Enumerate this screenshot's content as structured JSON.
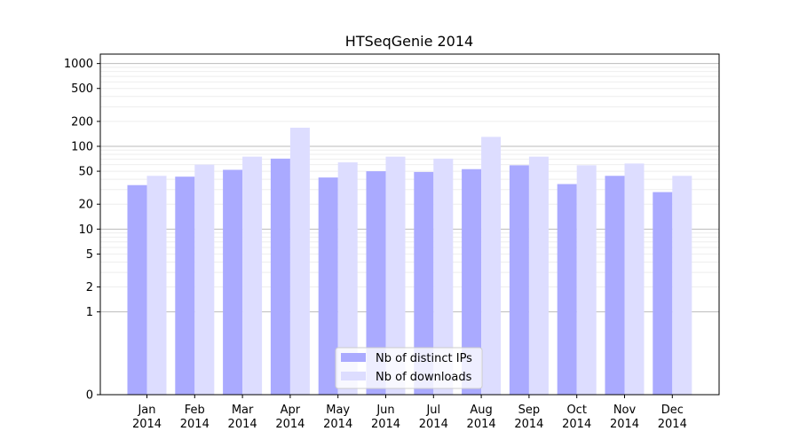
{
  "chart_data": {
    "type": "bar",
    "title": "HTSeqGenie 2014",
    "xlabel": "",
    "ylabel": "",
    "y_scale": "symlog",
    "ylim": [
      0,
      1300
    ],
    "y_ticks": [
      0,
      1,
      2,
      5,
      10,
      20,
      50,
      100,
      200,
      500,
      1000
    ],
    "y_tick_labels": [
      "0",
      "1",
      "2",
      "5",
      "10",
      "20",
      "50",
      "100",
      "200",
      "500",
      "1000"
    ],
    "categories": [
      "Jan\n2014",
      "Feb\n2014",
      "Mar\n2014",
      "Apr\n2014",
      "May\n2014",
      "Jun\n2014",
      "Jul\n2014",
      "Aug\n2014",
      "Sep\n2014",
      "Oct\n2014",
      "Nov\n2014",
      "Dec\n2014"
    ],
    "series": [
      {
        "name": "Nb of distinct IPs",
        "color": "#aaaaff",
        "values": [
          34,
          43,
          52,
          71,
          42,
          50,
          49,
          53,
          59,
          35,
          44,
          28
        ]
      },
      {
        "name": "Nb of downloads",
        "color": "#ddddff",
        "values": [
          44,
          60,
          75,
          168,
          64,
          75,
          71,
          130,
          75,
          59,
          62,
          44
        ]
      }
    ],
    "grid": true,
    "legend_position": "bottom-center"
  }
}
